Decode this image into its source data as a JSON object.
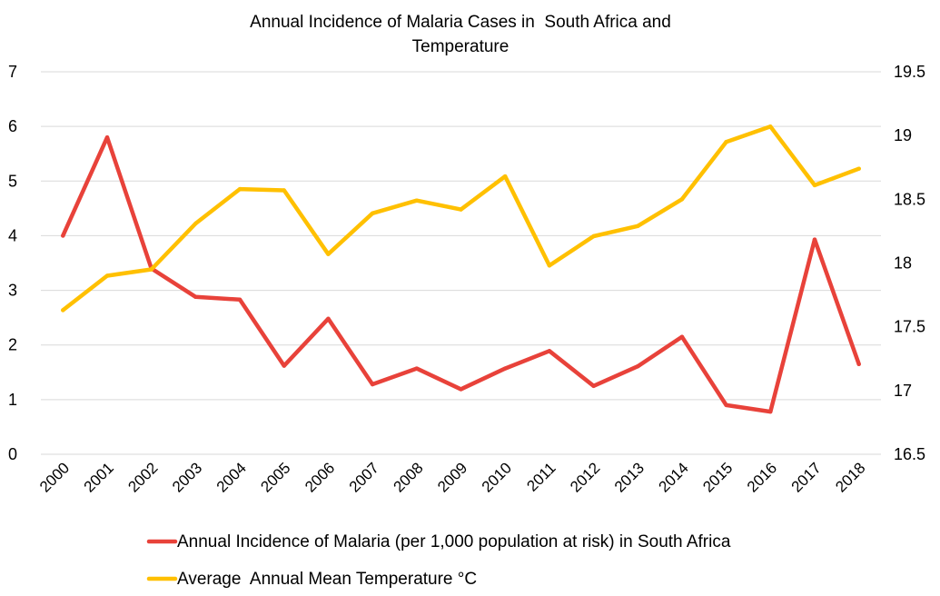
{
  "chart_data": {
    "type": "line",
    "title_lines": [
      "Annual Incidence of Malaria Cases in  South Africa and",
      "Temperature"
    ],
    "categories": [
      "2000",
      "2001",
      "2002",
      "2003",
      "2004",
      "2005",
      "2006",
      "2007",
      "2008",
      "2009",
      "2010",
      "2011",
      "2012",
      "2013",
      "2014",
      "2015",
      "2016",
      "2017",
      "2018"
    ],
    "y_left": {
      "min": 0,
      "max": 7,
      "step": 1,
      "ticks": [
        "0",
        "1",
        "2",
        "3",
        "4",
        "5",
        "6",
        "7"
      ]
    },
    "y_right": {
      "min": 16.5,
      "max": 19.5,
      "step": 0.5,
      "ticks": [
        "16.5",
        "17",
        "17.5",
        "18",
        "18.5",
        "19",
        "19.5"
      ]
    },
    "grid": true,
    "legend_position": "bottom",
    "series": [
      {
        "name": "Annual Incidence of Malaria (per 1,000 population at risk) in South Africa",
        "axis": "left",
        "color": "#e8423a",
        "values": [
          4.0,
          5.8,
          3.4,
          2.88,
          2.83,
          1.62,
          2.48,
          1.28,
          1.57,
          1.19,
          1.57,
          1.89,
          1.25,
          1.61,
          2.15,
          0.9,
          0.78,
          3.93,
          1.65
        ]
      },
      {
        "name": "Average  Annual Mean Temperature °C",
        "axis": "right",
        "color": "#ffc000",
        "values": [
          17.63,
          17.9,
          17.95,
          18.31,
          18.58,
          18.57,
          18.07,
          18.39,
          18.49,
          18.42,
          18.68,
          17.98,
          18.21,
          18.29,
          18.5,
          18.95,
          19.07,
          18.61,
          18.74
        ]
      }
    ]
  }
}
